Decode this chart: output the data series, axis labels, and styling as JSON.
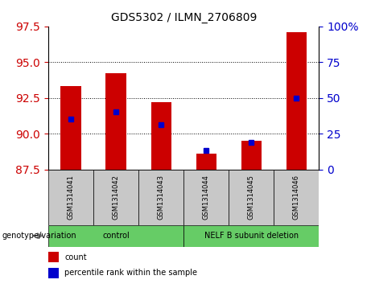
{
  "title": "GDS5302 / ILMN_2706809",
  "samples": [
    "GSM1314041",
    "GSM1314042",
    "GSM1314043",
    "GSM1314044",
    "GSM1314045",
    "GSM1314046"
  ],
  "count_values": [
    93.3,
    94.2,
    92.2,
    88.6,
    89.5,
    97.1
  ],
  "percentile_values": [
    91.0,
    91.5,
    90.6,
    88.8,
    89.4,
    92.5
  ],
  "ylim_left": [
    87.5,
    97.5
  ],
  "yticks_left": [
    87.5,
    90.0,
    92.5,
    95.0,
    97.5
  ],
  "ylim_right": [
    0,
    100
  ],
  "yticks_right": [
    0,
    25,
    50,
    75,
    100
  ],
  "bar_color": "#CC0000",
  "percentile_color": "#0000CC",
  "bar_bottom": 87.5,
  "sample_box_color": "#C8C8C8",
  "green_color": "#66CC66",
  "label_count": "count",
  "label_percentile": "percentile rank within the sample",
  "ylabel_left_color": "#CC0000",
  "ylabel_right_color": "#0000CC",
  "group_row_label": "genotype/variation",
  "group_spans": [
    [
      0,
      2,
      "control"
    ],
    [
      3,
      5,
      "NELF B subunit deletion"
    ]
  ],
  "grid_lines": [
    90.0,
    92.5,
    95.0
  ],
  "title_fontsize": 10
}
